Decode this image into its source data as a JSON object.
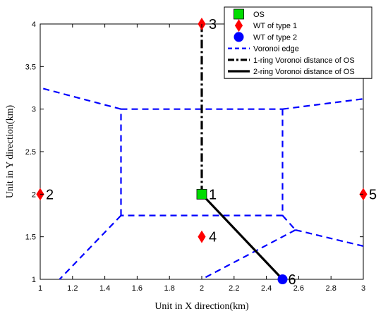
{
  "chart_data": {
    "type": "scatter",
    "xlabel": "Unit in X direction(km)",
    "ylabel": "Unit in Y direction(km)",
    "xlim": [
      1,
      3
    ],
    "ylim": [
      1,
      4
    ],
    "x_ticks": [
      1,
      1.2,
      1.4,
      1.6,
      1.8,
      2,
      2.2,
      2.4,
      2.6,
      2.8,
      3
    ],
    "x_tick_labels": [
      "1",
      "1.2",
      "1.4",
      "1.6",
      "1.8",
      "2",
      "2.2",
      "2.4",
      "2.6",
      "2.8",
      "3"
    ],
    "y_ticks": [
      1,
      1.5,
      2,
      2.5,
      3,
      3.5,
      4
    ],
    "y_tick_labels": [
      "1",
      "1.5",
      "2",
      "2.5",
      "3",
      "3.5",
      "4"
    ],
    "legend_position": "top-right",
    "legend": [
      {
        "label": "OS",
        "marker": "square",
        "color": "#00dd00"
      },
      {
        "label": "WT of type 1",
        "marker": "diamond",
        "color": "#ff0000"
      },
      {
        "label": "WT of type 2",
        "marker": "circle",
        "color": "#0000ff"
      },
      {
        "label": "Voronoi edge",
        "line": "dashed",
        "color": "#0000ff"
      },
      {
        "label": "1-ring Voronoi distance of OS",
        "line": "dashdot",
        "color": "#000000"
      },
      {
        "label": "2-ring Voronoi distance of OS",
        "line": "solid",
        "color": "#000000"
      }
    ],
    "points": [
      {
        "label": "1",
        "x": 2,
        "y": 2,
        "marker": "square",
        "color": "#00dd00"
      },
      {
        "label": "2",
        "x": 1,
        "y": 2,
        "marker": "diamond",
        "color": "#ff0000"
      },
      {
        "label": "3",
        "x": 2,
        "y": 4,
        "marker": "diamond",
        "color": "#ff0000"
      },
      {
        "label": "4",
        "x": 2,
        "y": 1.5,
        "marker": "diamond",
        "color": "#ff0000"
      },
      {
        "label": "5",
        "x": 3,
        "y": 2,
        "marker": "diamond",
        "color": "#ff0000"
      },
      {
        "label": "6",
        "x": 2.5,
        "y": 1,
        "marker": "circle",
        "color": "#0000ff"
      }
    ],
    "voronoi_edges": [
      [
        [
          1.5,
          1.75
        ],
        [
          1.5,
          3
        ]
      ],
      [
        [
          1.5,
          3
        ],
        [
          2.5,
          3
        ]
      ],
      [
        [
          2.5,
          3
        ],
        [
          2.5,
          1.75
        ]
      ],
      [
        [
          2.5,
          1.75
        ],
        [
          1.5,
          1.75
        ]
      ],
      [
        [
          1.5,
          3
        ],
        [
          1,
          3.25
        ]
      ],
      [
        [
          2.5,
          3
        ],
        [
          3,
          3.12
        ]
      ],
      [
        [
          1.5,
          1.75
        ],
        [
          1.12,
          1
        ]
      ],
      [
        [
          2.5,
          1.75
        ],
        [
          2.58,
          1.58
        ]
      ],
      [
        [
          2.58,
          1.58
        ],
        [
          3,
          1.39
        ]
      ],
      [
        [
          2.58,
          1.58
        ],
        [
          2,
          1
        ]
      ]
    ],
    "one_ring_path": [
      [
        2,
        2
      ],
      [
        2,
        4
      ]
    ],
    "two_ring_path": [
      [
        2,
        2
      ],
      [
        2.5,
        1
      ]
    ],
    "colors": {
      "voronoi": "#0000ff",
      "path": "#000000"
    }
  }
}
